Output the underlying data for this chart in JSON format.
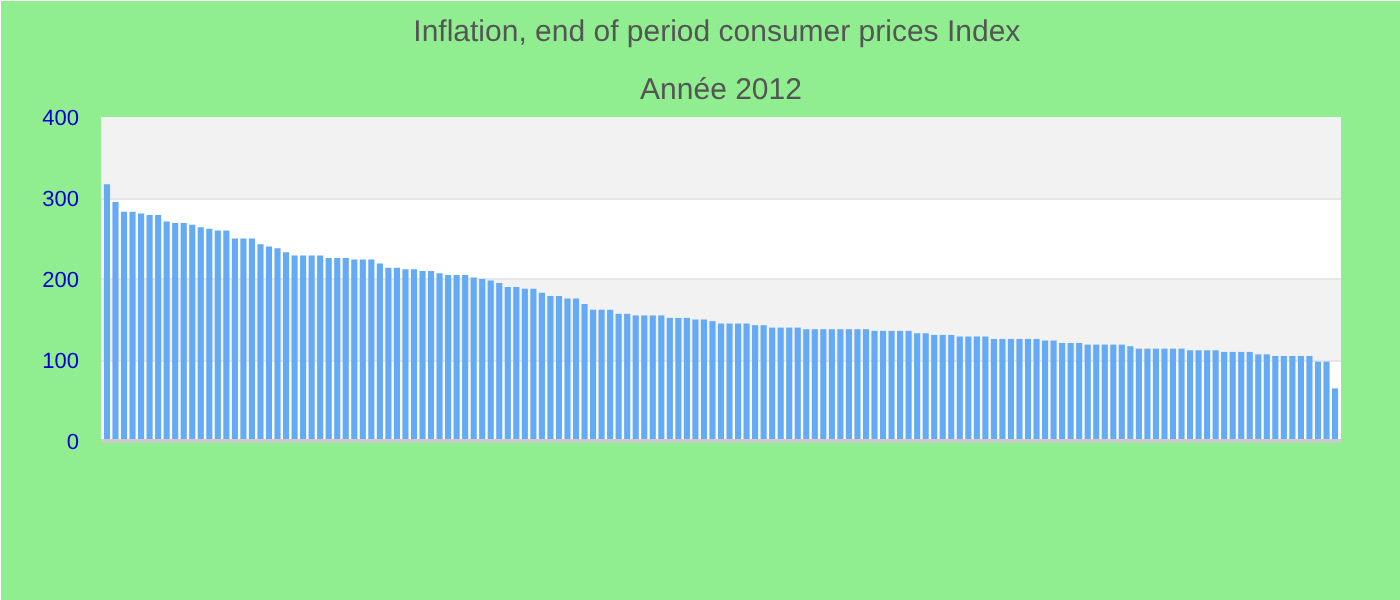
{
  "chart_data": {
    "type": "bar",
    "title": "Inflation, end of period consumer prices  Index",
    "subtitle": "Année 2012",
    "categories": [
      null,
      null,
      null,
      null,
      null,
      null,
      null,
      null,
      null,
      null,
      null,
      null,
      null,
      null,
      null,
      null,
      null,
      null,
      null,
      null,
      null,
      null,
      null,
      null,
      null,
      null,
      null,
      null,
      null,
      null,
      null,
      null,
      null,
      null,
      null,
      null,
      null,
      null,
      null,
      null,
      null,
      null,
      null,
      null,
      null,
      null,
      null,
      null,
      null,
      null,
      null,
      null,
      null,
      null,
      null,
      null,
      null,
      null,
      null,
      null,
      null,
      null,
      null,
      null,
      null,
      null,
      null,
      null,
      null,
      null,
      null,
      null,
      null,
      null,
      null,
      null,
      null,
      null,
      null,
      null,
      null,
      null,
      null,
      null,
      null,
      null,
      null,
      null,
      null,
      null,
      null,
      null,
      null,
      null,
      null,
      null,
      null,
      null,
      null,
      null,
      null,
      null,
      null,
      null,
      null,
      null,
      null,
      null,
      null,
      null,
      null,
      null,
      null,
      null,
      null,
      null,
      null,
      null,
      null,
      null,
      null,
      null,
      null,
      null,
      null,
      null,
      null,
      null,
      null,
      null,
      null,
      null,
      null,
      null,
      null,
      null,
      null,
      null,
      null,
      null,
      null,
      null,
      null,
      null,
      null
    ],
    "values": [
      317,
      295,
      283,
      283,
      281,
      279,
      279,
      271,
      269,
      269,
      267,
      264,
      262,
      260,
      260,
      250,
      250,
      250,
      243,
      240,
      238,
      233,
      229,
      229,
      229,
      229,
      226,
      226,
      226,
      224,
      224,
      224,
      219,
      214,
      214,
      212,
      212,
      210,
      210,
      207,
      205,
      205,
      205,
      202,
      200,
      198,
      195,
      190,
      190,
      188,
      188,
      183,
      179,
      179,
      176,
      176,
      169,
      162,
      162,
      162,
      157,
      157,
      155,
      155,
      155,
      155,
      152,
      152,
      152,
      150,
      150,
      148,
      145,
      145,
      145,
      145,
      143,
      143,
      140,
      140,
      140,
      140,
      138,
      138,
      138,
      138,
      138,
      138,
      138,
      138,
      136,
      136,
      136,
      136,
      136,
      133,
      133,
      131,
      131,
      131,
      129,
      129,
      129,
      129,
      126,
      126,
      126,
      126,
      126,
      126,
      124,
      124,
      121,
      121,
      121,
      119,
      119,
      119,
      119,
      119,
      117,
      114,
      114,
      114,
      114,
      114,
      114,
      112,
      112,
      112,
      112,
      110,
      110,
      110,
      110,
      107,
      107,
      105,
      105,
      105,
      105,
      105,
      98,
      98,
      65
    ],
    "color": "#64aaf5",
    "ylim": [
      0,
      400
    ],
    "yticks": [
      0,
      100,
      200,
      300,
      400
    ],
    "grid": "y"
  }
}
